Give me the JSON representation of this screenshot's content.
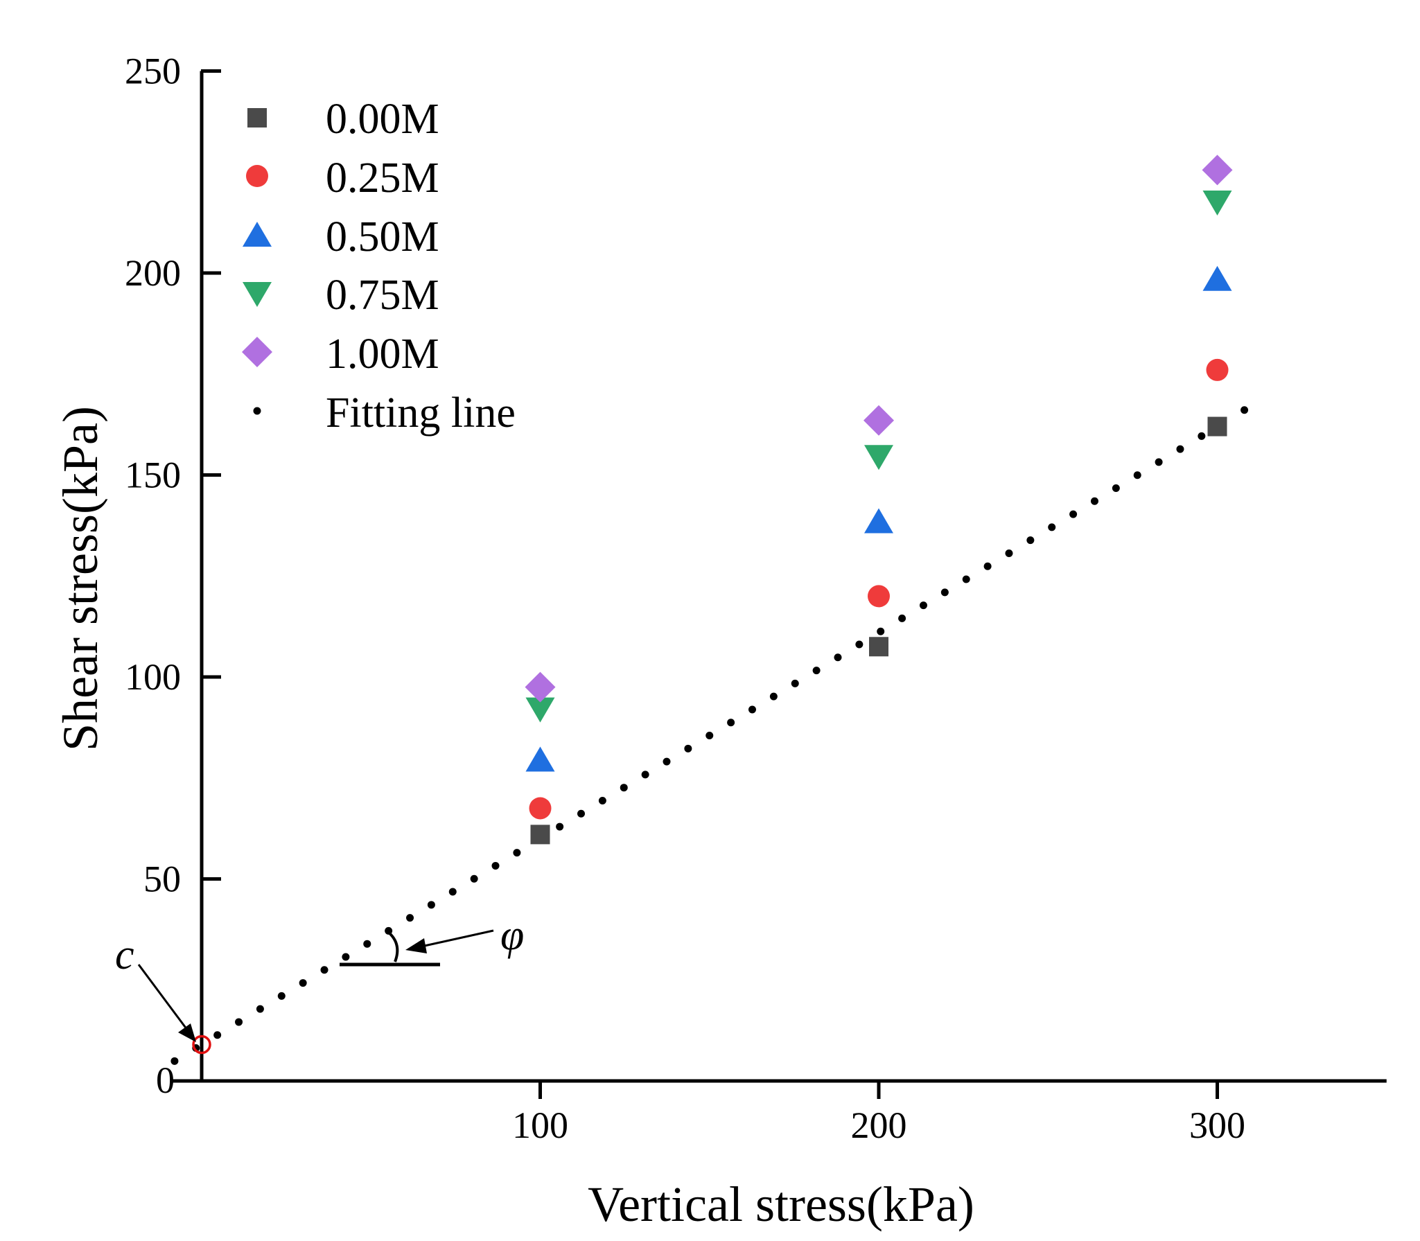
{
  "chart_data": {
    "type": "scatter",
    "title": "",
    "xlabel": "Vertical stress(kPa)",
    "ylabel": "Shear stress(kPa)",
    "xlim": [
      -8,
      350
    ],
    "ylim": [
      0,
      250
    ],
    "xticks": [
      100,
      200,
      300
    ],
    "yticks": [
      0,
      50,
      100,
      150,
      200,
      250
    ],
    "origin_label": "0",
    "series": [
      {
        "name": "0.00M",
        "marker": "square",
        "color": "#4a4a4a",
        "x": [
          100,
          200,
          300
        ],
        "y": [
          61,
          107.5,
          162
        ]
      },
      {
        "name": "0.25M",
        "marker": "circle",
        "color": "#ef3b3b",
        "x": [
          100,
          200,
          300
        ],
        "y": [
          67.5,
          120,
          176
        ]
      },
      {
        "name": "0.50M",
        "marker": "triangle-up",
        "color": "#1f6fe0",
        "x": [
          100,
          200,
          300
        ],
        "y": [
          79.5,
          138.5,
          198.5
        ]
      },
      {
        "name": "0.75M",
        "marker": "triangle-down",
        "color": "#2ea86a",
        "x": [
          100,
          200,
          300
        ],
        "y": [
          92,
          154.5,
          217.5
        ]
      },
      {
        "name": "1.00M",
        "marker": "diamond",
        "color": "#b070e0",
        "x": [
          100,
          200,
          300
        ],
        "y": [
          97.5,
          163.5,
          225.5
        ]
      }
    ],
    "fitting_line": {
      "name": "Fitting line",
      "color": "#000000",
      "x_range": [
        -8,
        308
      ],
      "intercept": 9,
      "slope": 0.51
    },
    "annotations": {
      "c_label": "c",
      "phi_label": "φ"
    },
    "legend_position": "top-left"
  },
  "colors": {
    "c_marker": "#e01010",
    "axis": "#000000"
  }
}
